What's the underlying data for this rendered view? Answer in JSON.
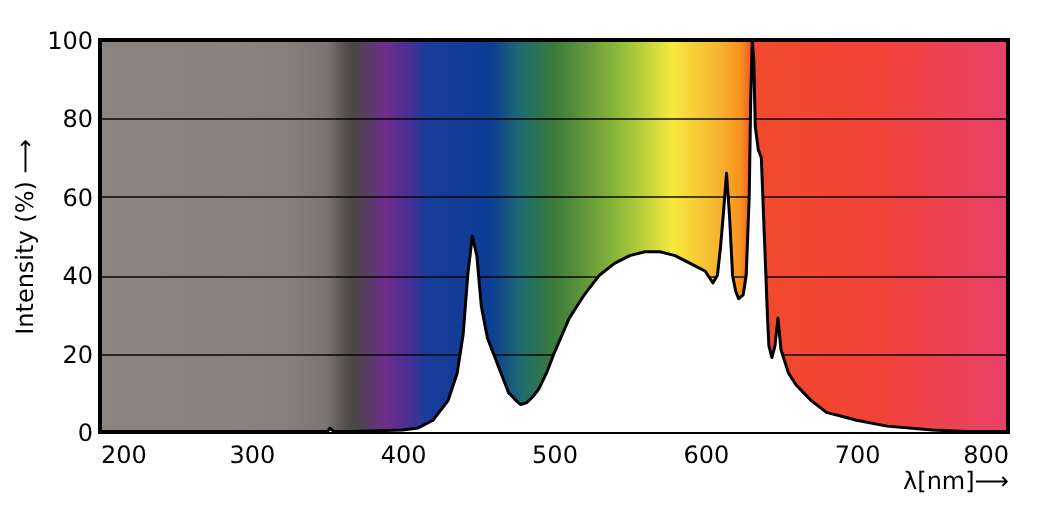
{
  "chart_data": {
    "type": "area",
    "xlabel": "λ[nm]⟶",
    "ylabel": "Intensity (%) ⟶",
    "x": [
      350,
      352,
      355,
      400,
      410,
      420,
      430,
      436,
      440,
      443,
      446,
      449,
      452,
      456,
      460,
      465,
      470,
      475,
      478,
      482,
      486,
      490,
      495,
      500,
      510,
      520,
      530,
      540,
      550,
      560,
      570,
      580,
      590,
      600,
      605,
      608,
      610,
      612,
      614,
      616,
      618,
      620,
      622,
      625,
      627,
      629,
      630,
      631,
      632,
      633,
      635,
      637,
      639,
      641,
      642,
      644,
      646,
      648,
      650,
      655,
      660,
      670,
      680,
      690,
      700,
      720,
      750,
      780,
      800
    ],
    "series": [
      {
        "color": "#ffffff",
        "values": [
          0,
          1,
          0,
          0.5,
          1,
          3,
          8,
          15,
          25,
          40,
          50,
          45,
          32,
          24,
          20,
          15,
          10,
          8,
          7,
          7.5,
          9,
          11,
          15,
          20,
          29,
          35,
          40,
          43,
          45,
          46,
          46,
          45,
          43,
          41,
          38,
          40,
          47,
          56,
          66,
          55,
          40,
          36,
          34,
          35,
          40,
          60,
          85,
          100,
          95,
          78,
          72,
          70,
          50,
          30,
          22,
          19,
          22,
          29,
          21,
          15,
          12,
          8,
          5,
          4,
          3,
          1.5,
          0.5,
          0,
          0
        ]
      }
    ],
    "xlim": [
      200,
      800
    ],
    "ylim": [
      0,
      100
    ],
    "xticks": [
      200,
      300,
      400,
      500,
      600,
      700,
      800
    ],
    "yticks": [
      0,
      20,
      40,
      60,
      80,
      100
    ],
    "grid": "y",
    "line_style": "solid"
  }
}
